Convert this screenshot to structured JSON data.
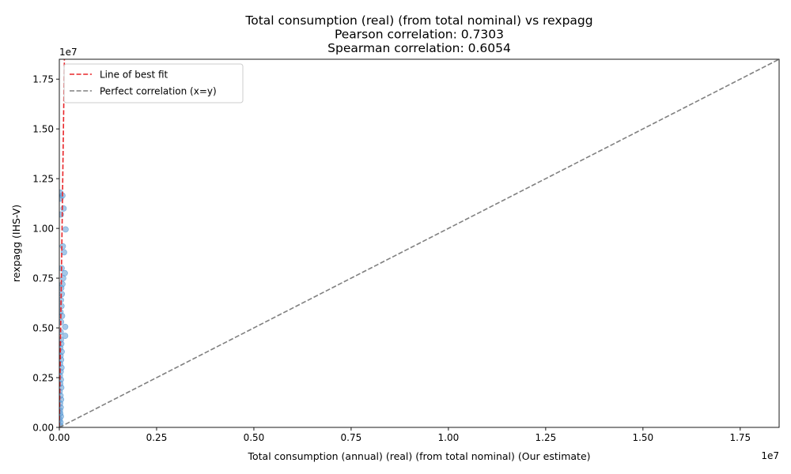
{
  "chart_data": {
    "type": "scatter",
    "title_lines": [
      "Total consumption (real) (from total nominal) vs rexpagg",
      "Pearson correlation: 0.7303",
      "Spearman correlation: 0.6054"
    ],
    "xlabel": "Total consumption (annual) (real) (from total nominal) (Our estimate)",
    "ylabel": "rexpagg (IHS-V)",
    "x_offset_label": "1e7",
    "y_offset_label": "1e7",
    "xlim": [
      0,
      18500000
    ],
    "ylim": [
      0,
      18500000
    ],
    "grid": false,
    "legend_position": "upper-left",
    "x_ticks": [
      {
        "value": 0,
        "label": "0.00"
      },
      {
        "value": 2500000,
        "label": "0.25"
      },
      {
        "value": 5000000,
        "label": "0.50"
      },
      {
        "value": 7500000,
        "label": "0.75"
      },
      {
        "value": 10000000,
        "label": "1.00"
      },
      {
        "value": 12500000,
        "label": "1.25"
      },
      {
        "value": 15000000,
        "label": "1.50"
      },
      {
        "value": 17500000,
        "label": "1.75"
      }
    ],
    "y_ticks": [
      {
        "value": 0,
        "label": "0.00"
      },
      {
        "value": 2500000,
        "label": "0.25"
      },
      {
        "value": 5000000,
        "label": "0.50"
      },
      {
        "value": 7500000,
        "label": "0.75"
      },
      {
        "value": 10000000,
        "label": "1.00"
      },
      {
        "value": 12500000,
        "label": "1.25"
      },
      {
        "value": 15000000,
        "label": "1.50"
      },
      {
        "value": 17500000,
        "label": "1.75"
      }
    ],
    "series": [
      {
        "kind": "scatter",
        "color": "#5b9bd5",
        "points": [
          [
            20000,
            100000
          ],
          [
            30000,
            250000
          ],
          [
            10000,
            400000
          ],
          [
            40000,
            550000
          ],
          [
            25000,
            700000
          ],
          [
            15000,
            850000
          ],
          [
            35000,
            1000000
          ],
          [
            20000,
            1200000
          ],
          [
            45000,
            1400000
          ],
          [
            30000,
            1600000
          ],
          [
            10000,
            1800000
          ],
          [
            50000,
            2000000
          ],
          [
            25000,
            2200000
          ],
          [
            40000,
            2400000
          ],
          [
            15000,
            2600000
          ],
          [
            35000,
            2800000
          ],
          [
            55000,
            3000000
          ],
          [
            20000,
            3200000
          ],
          [
            45000,
            3400000
          ],
          [
            30000,
            3600000
          ],
          [
            60000,
            3800000
          ],
          [
            25000,
            4000000
          ],
          [
            50000,
            4200000
          ],
          [
            40000,
            4400000
          ],
          [
            150000,
            4600000
          ],
          [
            35000,
            4800000
          ],
          [
            150000,
            5050000
          ],
          [
            45000,
            5300000
          ],
          [
            70000,
            5600000
          ],
          [
            30000,
            5800000
          ],
          [
            55000,
            6100000
          ],
          [
            40000,
            6400000
          ],
          [
            65000,
            6700000
          ],
          [
            50000,
            7000000
          ],
          [
            80000,
            7200000
          ],
          [
            100000,
            7500000
          ],
          [
            140000,
            7750000
          ],
          [
            60000,
            8000000
          ],
          [
            120000,
            8800000
          ],
          [
            90000,
            9100000
          ],
          [
            160000,
            9950000
          ],
          [
            40000,
            10700000
          ],
          [
            110000,
            11000000
          ],
          [
            30000,
            11500000
          ],
          [
            80000,
            11650000
          ],
          [
            20000,
            11800000
          ]
        ]
      },
      {
        "kind": "line",
        "name": "Line of best fit",
        "color": "#e8262a",
        "dash": "dashed",
        "points": [
          [
            0,
            0
          ],
          [
            130000,
            18500000
          ]
        ]
      },
      {
        "kind": "line",
        "name": "Perfect correlation (x=y)",
        "color": "#808080",
        "dash": "dashed",
        "points": [
          [
            0,
            0
          ],
          [
            18500000,
            18500000
          ]
        ]
      }
    ]
  }
}
